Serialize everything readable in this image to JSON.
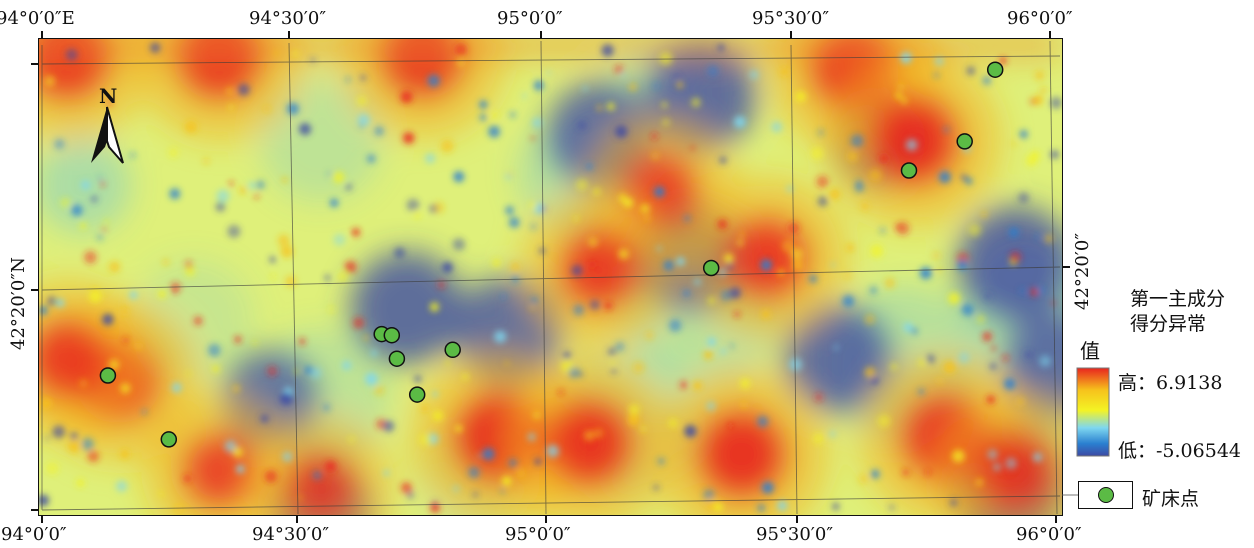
{
  "coordinates": {
    "top": [
      "94°0′0″E",
      "94°30′0″",
      "95°0′0″",
      "95°30′0″",
      "96°0′0″"
    ],
    "bottom": [
      "94°0′0″",
      "94°30′0″",
      "95°0′0″",
      "95°30′0″",
      "96°0′0″"
    ],
    "left_latitude": "42°20′0″N",
    "right_latitude": "42°20′0″"
  },
  "north_arrow": {
    "label": "N",
    "icon": "north-arrow-icon"
  },
  "legend": {
    "title_line1": "第一主成分",
    "title_line2": "得分异常",
    "value_label": "值",
    "high_label": "高：6.9138",
    "low_label": "低：-5.06544",
    "deposit_label": "矿床点",
    "ramp_colors": [
      "#e8251f",
      "#f6c21c",
      "#f4f324",
      "#7ed7f0",
      "#2a7fd0",
      "#3d4aa3"
    ]
  },
  "anomaly_scale": {
    "high_value": 6.9138,
    "low_value": -5.06544,
    "high_color": "#e8251f",
    "mid_color": "#f4f324",
    "low_color": "#3d4aa3"
  },
  "deposit_points": [
    {
      "lon": 95.88,
      "lat": 42.563
    },
    {
      "lon": 95.82,
      "lat": 42.499
    },
    {
      "lon": 95.71,
      "lat": 42.473
    },
    {
      "lon": 95.32,
      "lat": 42.386
    },
    {
      "lon": 94.67,
      "lat": 42.327
    },
    {
      "lon": 94.69,
      "lat": 42.326
    },
    {
      "lon": 94.7,
      "lat": 42.305
    },
    {
      "lon": 94.81,
      "lat": 42.313
    },
    {
      "lon": 94.13,
      "lat": 42.29
    },
    {
      "lon": 94.74,
      "lat": 42.273
    },
    {
      "lon": 94.25,
      "lat": 42.233
    }
  ],
  "hotspots": [
    {
      "lon": 94.35,
      "lat": 42.575,
      "strength": 0.95
    },
    {
      "lon": 94.05,
      "lat": 42.575,
      "strength": 0.95
    },
    {
      "lon": 94.75,
      "lat": 42.575,
      "strength": 0.9
    },
    {
      "lon": 95.6,
      "lat": 42.565,
      "strength": 0.95
    },
    {
      "lon": 95.72,
      "lat": 42.5,
      "strength": 1.0
    },
    {
      "lon": 95.22,
      "lat": 42.455,
      "strength": 0.7
    },
    {
      "lon": 95.43,
      "lat": 42.395,
      "strength": 0.85
    },
    {
      "lon": 95.1,
      "lat": 42.385,
      "strength": 0.8
    },
    {
      "lon": 94.15,
      "lat": 42.285,
      "strength": 0.85
    },
    {
      "lon": 94.05,
      "lat": 42.305,
      "strength": 0.8
    },
    {
      "lon": 94.9,
      "lat": 42.235,
      "strength": 1.0
    },
    {
      "lon": 95.08,
      "lat": 42.23,
      "strength": 0.95
    },
    {
      "lon": 95.38,
      "lat": 42.22,
      "strength": 1.0
    },
    {
      "lon": 95.78,
      "lat": 42.235,
      "strength": 0.95
    },
    {
      "lon": 95.92,
      "lat": 42.205,
      "strength": 0.8
    },
    {
      "lon": 94.35,
      "lat": 42.205,
      "strength": 0.7
    },
    {
      "lon": 94.55,
      "lat": 42.19,
      "strength": 0.6
    }
  ],
  "lowspots": [
    {
      "lon": 94.72,
      "lat": 42.35,
      "strength": 0.95
    },
    {
      "lon": 94.92,
      "lat": 42.33,
      "strength": 0.85
    },
    {
      "lon": 95.1,
      "lat": 42.505,
      "strength": 0.8
    },
    {
      "lon": 95.3,
      "lat": 42.54,
      "strength": 0.9
    },
    {
      "lon": 95.28,
      "lat": 42.395,
      "strength": 0.85
    },
    {
      "lon": 95.92,
      "lat": 42.39,
      "strength": 1.0
    },
    {
      "lon": 96.0,
      "lat": 42.3,
      "strength": 0.8
    },
    {
      "lon": 95.9,
      "lat": 42.19,
      "strength": 1.0
    },
    {
      "lon": 95.57,
      "lat": 42.305,
      "strength": 0.85
    },
    {
      "lon": 94.45,
      "lat": 42.27,
      "strength": 0.6
    },
    {
      "lon": 94.55,
      "lat": 42.17,
      "strength": 0.7
    },
    {
      "lon": 95.65,
      "lat": 42.5,
      "strength": 0.55
    }
  ]
}
